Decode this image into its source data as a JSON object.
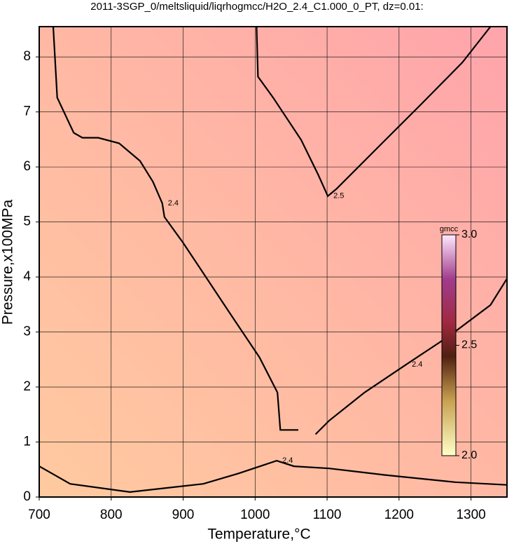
{
  "chart_data": {
    "type": "contour",
    "title": "2011-3SGP_0/meltsliquid/liqrhogmcc/H2O_2.4_C1.000_0_PT, dz=0.01:",
    "x_label": "Temperature,°C",
    "y_label": "Pressure,x100MPa",
    "xlim": [
      700,
      1350
    ],
    "ylim": [
      0,
      8.55
    ],
    "xticks": [
      700,
      800,
      900,
      1000,
      1100,
      1200,
      1300
    ],
    "yticks": [
      0,
      1,
      2,
      3,
      4,
      5,
      6,
      7,
      8
    ],
    "grid": true,
    "contours": [
      {
        "level": 2.4,
        "x": [
          719.5,
          725,
          748,
          760,
          782,
          811,
          840,
          858,
          871,
          874,
          899,
          928,
          967,
          1006,
          1031,
          1035,
          1060
        ],
        "y": [
          8.55,
          7.26,
          6.62,
          6.53,
          6.53,
          6.43,
          6.11,
          5.73,
          5.34,
          5.09,
          4.64,
          4.07,
          3.3,
          2.54,
          1.9,
          1.22,
          1.22
        ]
      },
      {
        "level": 2.4,
        "x": [
          1084,
          1103,
          1152,
          1210,
          1269,
          1327,
          1350
        ],
        "y": [
          1.14,
          1.39,
          1.9,
          2.41,
          2.92,
          3.49,
          3.97
        ]
      },
      {
        "level": 2.5,
        "x": [
          1002,
          1004,
          1025,
          1064,
          1088,
          1101,
          1113,
          1171,
          1230,
          1288,
          1327
        ],
        "y": [
          8.55,
          7.64,
          7.26,
          6.49,
          5.85,
          5.47,
          5.6,
          6.36,
          7.13,
          7.9,
          8.55
        ]
      },
      {
        "level": 2.4,
        "x": [
          700,
          743,
          826,
          928,
          977,
          1030,
          1054,
          1103,
          1181,
          1278,
          1350
        ],
        "y": [
          0.56,
          0.24,
          0.09,
          0.24,
          0.43,
          0.66,
          0.56,
          0.52,
          0.4,
          0.27,
          0.22
        ]
      }
    ],
    "colorbar": {
      "title": "gmcc",
      "lim": [
        2,
        3
      ],
      "ticks": [
        {
          "value": 2,
          "label": "2.0"
        },
        2.5,
        {
          "value": 3,
          "label": "3.0"
        }
      ]
    }
  }
}
